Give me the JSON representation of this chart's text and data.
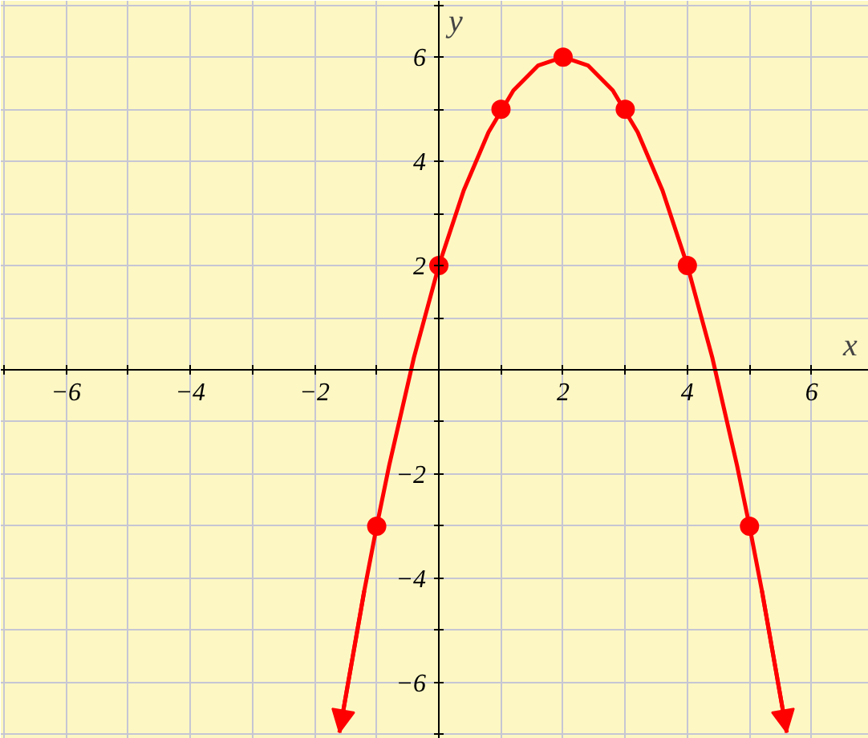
{
  "chart_data": {
    "type": "line",
    "xlabel": "x",
    "ylabel": "y",
    "xlim": [
      -7.05,
      6.92
    ],
    "ylim": [
      -7.08,
      7.08
    ],
    "xticks": [
      {
        "value": -7,
        "label": null
      },
      -6,
      {
        "value": -5,
        "label": null
      },
      -4,
      {
        "value": -3,
        "label": null
      },
      -2,
      {
        "value": -1,
        "label": null
      },
      {
        "value": 0,
        "label": null
      },
      {
        "value": 1,
        "label": null
      },
      2,
      {
        "value": 3,
        "label": null
      },
      4,
      {
        "value": 5,
        "label": null
      },
      6
    ],
    "yticks": [
      {
        "value": -7,
        "label": null
      },
      -6,
      {
        "value": -5,
        "label": null
      },
      -4,
      {
        "value": -3,
        "label": null
      },
      -2,
      {
        "value": -1,
        "label": null
      },
      {
        "value": 0,
        "label": null
      },
      {
        "value": 1,
        "label": null
      },
      2,
      {
        "value": 3,
        "label": null
      },
      4,
      {
        "value": 5,
        "label": null
      },
      6,
      {
        "value": 7,
        "label": null
      }
    ],
    "grid": true,
    "series": [
      {
        "color": "#ff0000",
        "x": [
          -1.6,
          -1.2,
          -1,
          -0.8,
          -0.4,
          0,
          0.4,
          0.8,
          1.2,
          1.6,
          2,
          2.4,
          2.8,
          3.2,
          3.6,
          4,
          4.4,
          4.8,
          5,
          5.2,
          5.6
        ],
        "values": [
          -6.96,
          -4.24,
          -3,
          -1.84,
          0.24,
          2,
          3.44,
          4.56,
          5.36,
          5.84,
          6,
          5.84,
          5.36,
          4.56,
          3.44,
          2,
          0.24,
          -1.84,
          -3,
          -4.24,
          -6.96
        ]
      },
      {
        "type": "scatter",
        "color": "#ff0000",
        "marker": "circle",
        "x": [
          -1,
          0,
          1,
          2,
          3,
          4,
          5
        ],
        "values": [
          -3,
          2,
          5,
          6,
          5,
          2,
          -3
        ]
      }
    ]
  }
}
